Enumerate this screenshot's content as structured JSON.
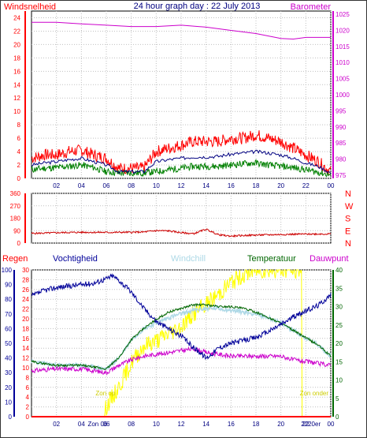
{
  "colors": {
    "wind_red": "#ff0000",
    "wind_blue": "#000080",
    "wind_green": "#008000",
    "baro_magenta": "#cc00cc",
    "dir_red": "#cc0000",
    "hum_blue": "#000099",
    "windchill": "#add8e6",
    "temp_green": "#006600",
    "dew_magenta": "#cc00cc",
    "solar_yellow": "#ffff00",
    "sun_label": "#cccc00",
    "text_dark": "#000080",
    "grid": "#c0c0c0"
  },
  "chart_data": [
    {
      "type": "line",
      "title": "24 hour graph day : 22 July 2013",
      "left_label": "Windsnelheid",
      "right_label": "Barometer",
      "x_ticks": [
        "02",
        "04",
        "06",
        "08",
        "10",
        "12",
        "14",
        "16",
        "18",
        "20",
        "22",
        "00"
      ],
      "y_left_ticks": [
        "0",
        "2",
        "4",
        "6",
        "8",
        "10",
        "12",
        "14",
        "16",
        "18",
        "20",
        "22",
        "24"
      ],
      "y_left_range": [
        0,
        25
      ],
      "y_right_ticks": [
        "975",
        "980",
        "985",
        "990",
        "995",
        "1000",
        "1005",
        "1010",
        "1015",
        "1020",
        "1025"
      ],
      "y_right_range": [
        974,
        1026
      ],
      "x_range": [
        0,
        24
      ],
      "grid": true,
      "series": [
        {
          "role": "wind_gust",
          "axis": "left",
          "x": [
            0,
            1,
            2,
            3,
            4,
            5,
            6,
            7,
            8,
            9,
            10,
            11,
            12,
            13,
            14,
            15,
            16,
            17,
            18,
            19,
            20,
            21,
            22,
            23,
            24
          ],
          "y": [
            3,
            3.5,
            3.5,
            4,
            4.2,
            3.5,
            3,
            1.5,
            1.5,
            1.5,
            4,
            4.5,
            5,
            5.5,
            5.5,
            5.5,
            6,
            6,
            6.5,
            6,
            5.5,
            4.5,
            3.5,
            2.5,
            1
          ]
        },
        {
          "role": "wind_avg",
          "axis": "left",
          "x": [
            0,
            1,
            2,
            3,
            4,
            5,
            6,
            7,
            8,
            9,
            10,
            11,
            12,
            13,
            14,
            15,
            16,
            17,
            18,
            19,
            20,
            21,
            22,
            23,
            24
          ],
          "y": [
            2,
            2.3,
            2.5,
            2.8,
            3,
            2.5,
            2,
            1,
            1,
            1,
            2.5,
            2.8,
            3,
            3.2,
            3.2,
            3.3,
            3.6,
            3.8,
            4,
            3.8,
            3.5,
            3,
            2.3,
            1.8,
            0.8
          ]
        },
        {
          "role": "wind_low",
          "axis": "left",
          "x": [
            0,
            1,
            2,
            3,
            4,
            5,
            6,
            7,
            8,
            9,
            10,
            11,
            12,
            13,
            14,
            15,
            16,
            17,
            18,
            19,
            20,
            21,
            22,
            23,
            24
          ],
          "y": [
            1.3,
            1.5,
            1.6,
            1.8,
            2,
            1.6,
            1,
            0.8,
            0.8,
            0.8,
            1,
            1.3,
            1.5,
            1.8,
            1.8,
            1.8,
            2,
            2.2,
            2.3,
            2,
            1.8,
            1.6,
            1.3,
            0.9,
            0.5
          ]
        },
        {
          "role": "barometer",
          "axis": "right",
          "x": [
            0,
            2,
            4,
            6,
            8,
            10,
            12,
            14,
            16,
            18,
            20,
            21,
            22,
            24
          ],
          "y": [
            1022.5,
            1022.5,
            1022,
            1021.6,
            1021.2,
            1021.2,
            1021.6,
            1021,
            1020,
            1019,
            1017.5,
            1017.3,
            1017.8,
            1017.8
          ]
        }
      ]
    },
    {
      "type": "line",
      "title": "",
      "y_left_ticks": [
        "0",
        "90",
        "180",
        "270",
        "360"
      ],
      "y_left_range": [
        0,
        360
      ],
      "compass_labels": [
        "N",
        "W",
        "S",
        "E",
        "N"
      ],
      "x_range": [
        0,
        24
      ],
      "grid": true,
      "series": [
        {
          "role": "wind_direction",
          "x": [
            0,
            1,
            2,
            3,
            4,
            5,
            6,
            7,
            8,
            9,
            10,
            11,
            12,
            13,
            14,
            15,
            16,
            17,
            18,
            19,
            20,
            21,
            22,
            23,
            24
          ],
          "y": [
            70,
            72,
            75,
            77,
            78,
            78,
            77,
            78,
            78,
            80,
            90,
            88,
            75,
            68,
            100,
            60,
            50,
            55,
            58,
            60,
            62,
            64,
            65,
            66,
            66
          ]
        }
      ]
    },
    {
      "type": "line",
      "title": "",
      "legend": [
        {
          "label": "Regen",
          "color": "#ff0000"
        },
        {
          "label": "Vochtigheid",
          "color": "#000099"
        },
        {
          "label": "Windchill",
          "color": "#add8e6"
        },
        {
          "label": "Temperatuur",
          "color": "#006600"
        },
        {
          "label": "Dauwpunt",
          "color": "#cc00cc"
        }
      ],
      "x_ticks": [
        "02",
        "04",
        "06",
        "08",
        "10",
        "12",
        "14",
        "16",
        "18",
        "20",
        "22",
        "00"
      ],
      "y_rain_ticks": [
        "0",
        "2",
        "4",
        "6",
        "8",
        "10",
        "12",
        "14",
        "16",
        "18",
        "20",
        "22",
        "24",
        "26",
        "28",
        "30"
      ],
      "y_rain_range": [
        0,
        30
      ],
      "y_hum_ticks": [
        "0",
        "10",
        "20",
        "30",
        "40",
        "50",
        "60",
        "70",
        "80",
        "90",
        "100"
      ],
      "y_hum_range": [
        0,
        100
      ],
      "y_temp_ticks": [
        "0",
        "5",
        "10",
        "15",
        "20",
        "25",
        "30",
        "35",
        "40"
      ],
      "y_temp_range": [
        0,
        40
      ],
      "sunrise_label": "Zon op",
      "sunset_label": "Zon onder",
      "sunrise_hour": 5.9,
      "sunset_hour": 21.7,
      "x_tick_overlays": [
        "Zon 06",
        "2220er"
      ],
      "x_range": [
        0,
        24
      ],
      "grid": true,
      "series": [
        {
          "role": "rain",
          "axis": "rain",
          "x": [
            0,
            24
          ],
          "y": [
            0,
            0
          ]
        },
        {
          "role": "humidity",
          "axis": "humidity",
          "x": [
            0,
            1,
            2,
            3,
            4,
            5,
            6,
            6.5,
            7,
            8,
            9,
            10,
            11,
            12,
            13,
            13.5,
            14,
            14.5,
            15,
            16,
            17,
            18,
            19,
            20,
            21,
            22,
            23,
            24
          ],
          "y": [
            82,
            86,
            88,
            89,
            90,
            91,
            94,
            96,
            93,
            85,
            74,
            65,
            60,
            55,
            47,
            44,
            40,
            43,
            47,
            50,
            52,
            54,
            58,
            63,
            68,
            72,
            76,
            83
          ]
        },
        {
          "role": "temperature",
          "axis": "temp",
          "x": [
            0,
            1,
            2,
            3,
            4,
            5,
            6,
            7,
            8,
            9,
            10,
            11,
            12,
            13,
            14,
            15,
            16,
            17,
            18,
            19,
            20,
            21,
            22,
            23,
            24
          ],
          "y": [
            15,
            14.5,
            14,
            14,
            14,
            13.5,
            13,
            16,
            21,
            24,
            25.5,
            27,
            28,
            29,
            29.5,
            29.5,
            29,
            28.5,
            28,
            27,
            25.5,
            23.5,
            21.5,
            19.5,
            16.5
          ]
        },
        {
          "role": "windchill",
          "axis": "temp",
          "x": [
            0,
            1,
            2,
            3,
            4,
            5,
            6,
            7,
            8,
            9,
            10,
            11,
            12,
            13,
            14,
            15,
            16,
            17,
            18,
            19,
            20,
            21,
            22,
            23,
            24
          ],
          "y": [
            15,
            14.5,
            14,
            14,
            14,
            13.5,
            13,
            16,
            21,
            24,
            26.5,
            28.5,
            29.5,
            30.5,
            30.5,
            30,
            30,
            29.5,
            28.5,
            27,
            25.5,
            23.5,
            21.5,
            19.5,
            16.5
          ]
        },
        {
          "role": "dewpoint",
          "axis": "temp",
          "x": [
            0,
            1,
            2,
            3,
            4,
            5,
            6,
            7,
            8,
            9,
            10,
            11,
            12,
            13,
            14,
            15,
            16,
            17,
            18,
            19,
            20,
            21,
            22,
            23,
            24
          ],
          "y": [
            12.5,
            12.8,
            13,
            13,
            13,
            12.5,
            12,
            14,
            15.5,
            16.5,
            17,
            17.5,
            18,
            18.5,
            17.5,
            17,
            16.5,
            16.5,
            16.5,
            16.5,
            16.5,
            15.5,
            15,
            14.5,
            14
          ]
        },
        {
          "role": "solar",
          "axis": "rain",
          "x": [
            0,
            5.8,
            6,
            7,
            8,
            9,
            10,
            11,
            12,
            13,
            14,
            15,
            16,
            17,
            18,
            19,
            20,
            21,
            21.7,
            21.7,
            24
          ],
          "y": [
            0,
            0,
            2,
            6,
            11,
            14.5,
            15.5,
            17,
            18.5,
            21,
            23,
            25,
            27.5,
            29,
            30,
            30,
            30,
            30,
            30,
            0,
            0
          ]
        }
      ]
    }
  ]
}
